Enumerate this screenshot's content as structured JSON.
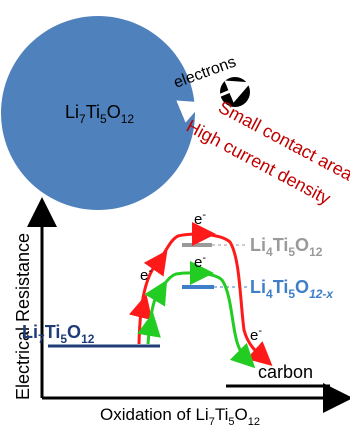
{
  "top": {
    "particle_label": {
      "main": "Li",
      "s1": "7",
      "m2": "Ti",
      "s2": "5",
      "m3": "O",
      "s3": "12"
    },
    "electrons_label": "electrons",
    "annotation_line1": "Small contact area",
    "annotation_line2": "High current density"
  },
  "plot": {
    "y_axis_label": "Electrical Resistance",
    "x_axis_label": {
      "main": "Oxidation of Li",
      "s1": "7",
      "m2": "Ti",
      "s2": "5",
      "m3": "O",
      "s3": "12"
    },
    "levels": {
      "li7": {
        "main": "Li",
        "s1": "7",
        "m2": "Ti",
        "s2": "5",
        "m3": "O",
        "s3": "12"
      },
      "li4": {
        "main": "Li",
        "s1": "4",
        "m2": "Ti",
        "s2": "5",
        "m3": "O",
        "s3": "12"
      },
      "li4x": {
        "main": "Li",
        "s1": "4",
        "m2": "Ti",
        "s2": "5",
        "m3": "O",
        "s3": "12-x"
      },
      "carbon": "carbon"
    },
    "electron_label": "e",
    "electron_sup": "-"
  },
  "colors": {
    "particle": "#4f81bd",
    "annotation": "#c00000",
    "red_path": "#ff1a1a",
    "green_path": "#22cc22",
    "li7_text": "#1f3c78",
    "li4_text": "#9a9a9a",
    "li4x_text": "#3f7ec8"
  }
}
